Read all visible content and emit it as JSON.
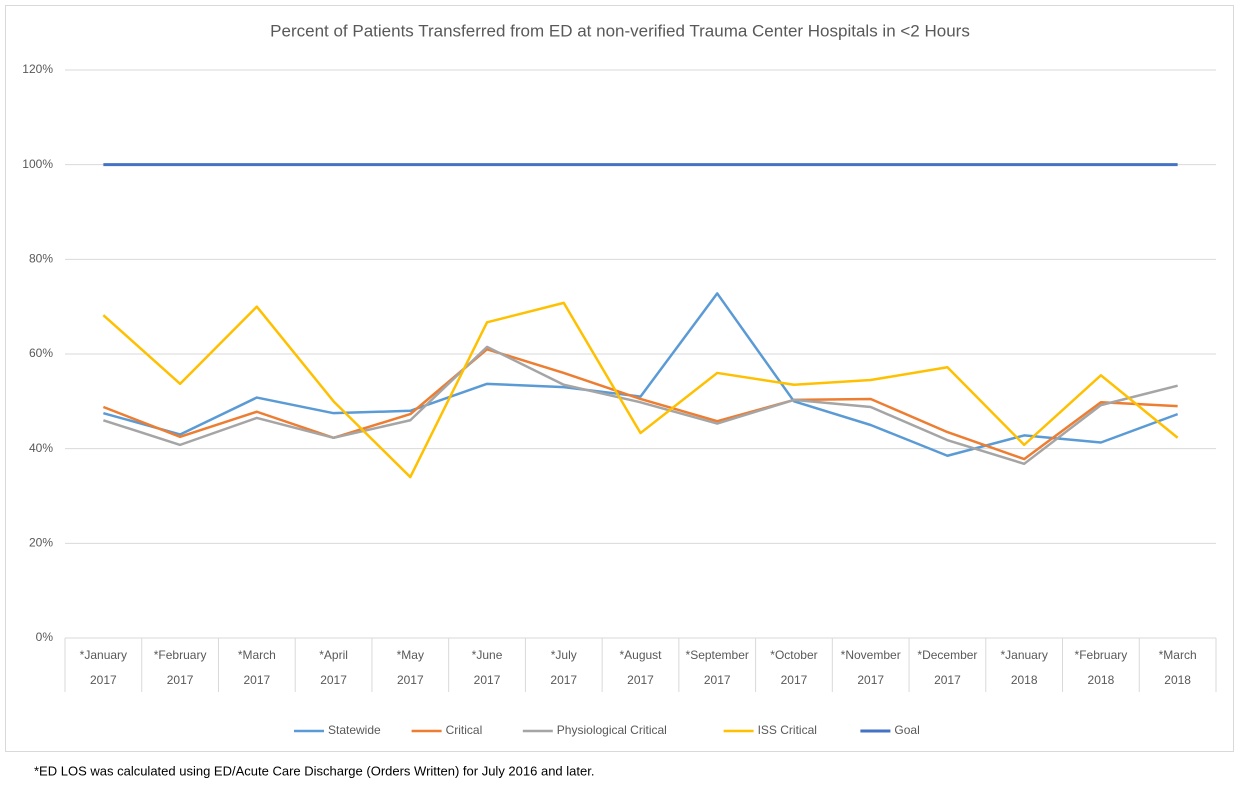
{
  "chart_data": {
    "type": "line",
    "title": "Percent of Patients Transferred from ED at non-verified Trauma Center Hospitals in <2 Hours",
    "categories": [
      [
        "*January",
        "2017"
      ],
      [
        "*February",
        "2017"
      ],
      [
        "*March",
        "2017"
      ],
      [
        "*April",
        "2017"
      ],
      [
        "*May",
        "2017"
      ],
      [
        "*June",
        "2017"
      ],
      [
        "*July",
        "2017"
      ],
      [
        "*August",
        "2017"
      ],
      [
        "*September",
        "2017"
      ],
      [
        "*October",
        "2017"
      ],
      [
        "*November",
        "2017"
      ],
      [
        "*December",
        "2017"
      ],
      [
        "*January",
        "2018"
      ],
      [
        "*February",
        "2018"
      ],
      [
        "*March",
        "2018"
      ]
    ],
    "series": [
      {
        "name": "Statewide",
        "color": "#5b9bd5",
        "values": [
          47.5,
          43,
          50.8,
          47.5,
          48,
          53.7,
          53,
          51,
          72.8,
          50,
          45,
          38.5,
          42.8,
          41.3,
          47.3
        ]
      },
      {
        "name": "Critical",
        "color": "#ed7d31",
        "values": [
          48.8,
          42.5,
          47.8,
          42.3,
          47.3,
          61,
          56,
          50.5,
          45.8,
          50.3,
          50.5,
          43.5,
          37.8,
          49.8,
          49
        ]
      },
      {
        "name": "Physiological Critical",
        "color": "#a5a5a5",
        "values": [
          46,
          40.8,
          46.5,
          42.3,
          46,
          61.5,
          53.5,
          49.8,
          45.3,
          50.3,
          48.8,
          41.8,
          36.8,
          49.2,
          53.3
        ]
      },
      {
        "name": "ISS Critical",
        "color": "#ffc000",
        "values": [
          68.2,
          53.7,
          70,
          50,
          34,
          66.7,
          70.8,
          43.3,
          56,
          53.5,
          54.5,
          57.2,
          40.8,
          55.5,
          42.3
        ]
      },
      {
        "name": "Goal",
        "color": "#4472c4",
        "values": [
          100,
          100,
          100,
          100,
          100,
          100,
          100,
          100,
          100,
          100,
          100,
          100,
          100,
          100,
          100
        ]
      }
    ],
    "ylim": [
      0,
      120
    ],
    "yticks": [
      {
        "value": 0,
        "label": "0%"
      },
      {
        "value": 20,
        "label": "20%"
      },
      {
        "value": 40,
        "label": "40%"
      },
      {
        "value": 60,
        "label": "60%"
      },
      {
        "value": 80,
        "label": "80%"
      },
      {
        "value": 100,
        "label": "100%"
      },
      {
        "value": 120,
        "label": "120%"
      }
    ],
    "grid": true,
    "legend": "bottom",
    "footnote": "*ED LOS was calculated using ED/Acute Care Discharge (Orders Written) for July 2016 and later."
  }
}
